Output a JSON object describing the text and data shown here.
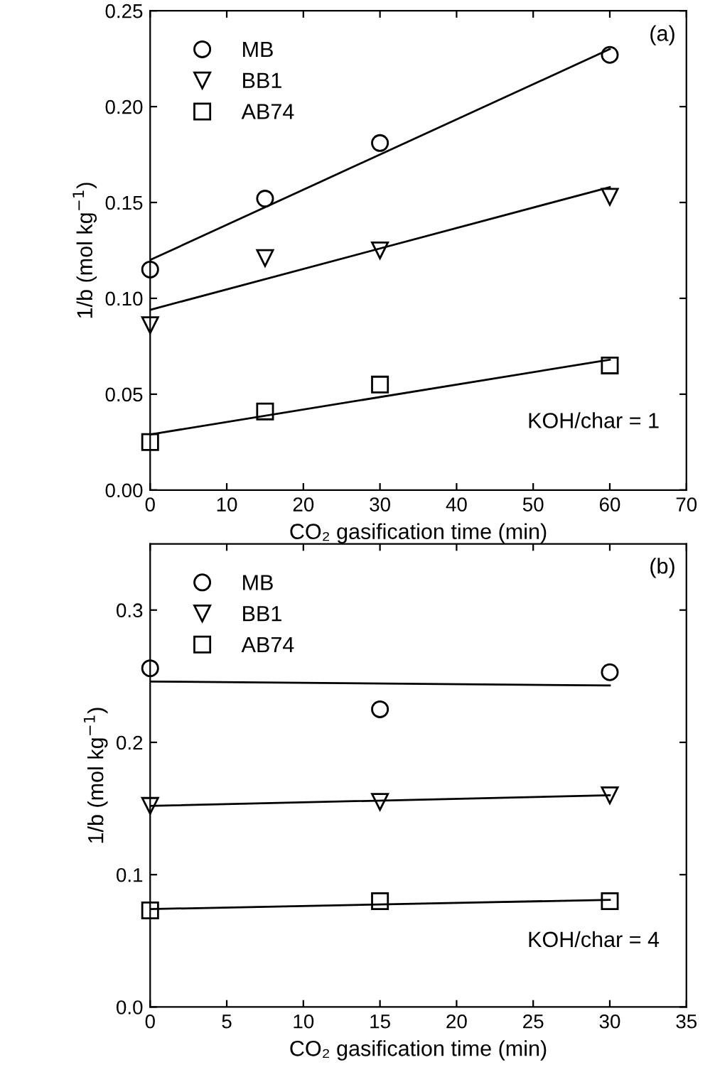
{
  "chart_data": [
    {
      "type": "scatter",
      "xlabel": "CO₂ gasification time (min)",
      "ylabel": "1/b (mol kg$^{−1}$)",
      "xlim": [
        0,
        70
      ],
      "xticks": [
        0,
        10,
        20,
        30,
        40,
        50,
        60,
        70
      ],
      "ylim": [
        0,
        0.25
      ],
      "yticks": [
        {
          "value": 0,
          "label": "0.00"
        },
        0.05,
        {
          "value": 0.1,
          "label": "0.10"
        },
        0.15,
        {
          "value": 0.2,
          "label": "0.20"
        },
        0.25
      ],
      "grid": false,
      "legend": "top left",
      "annotations": [
        "(a)",
        "KOH/char = 1"
      ],
      "series": [
        {
          "name": "MB",
          "marker": "circle",
          "color": "#000000",
          "x": [
            0,
            15,
            30,
            60
          ],
          "values": [
            0.115,
            0.152,
            0.181,
            0.227
          ]
        },
        {
          "name": "BB1",
          "marker": "triangle",
          "color": "#000000",
          "x": [
            0,
            15,
            30,
            60
          ],
          "values": [
            0.086,
            0.121,
            0.125,
            0.153
          ]
        },
        {
          "name": "AB74",
          "marker": "square",
          "color": "#000000",
          "x": [
            0,
            15,
            30,
            60
          ],
          "values": [
            0.025,
            0.041,
            0.055,
            0.065
          ]
        },
        {
          "type": "line",
          "color": "#000000",
          "x": [
            0,
            60
          ],
          "values": [
            0.12,
            0.23
          ]
        },
        {
          "type": "line",
          "color": "#000000",
          "x": [
            0,
            60
          ],
          "values": [
            0.094,
            0.158
          ]
        },
        {
          "type": "line",
          "color": "#000000",
          "x": [
            0,
            60
          ],
          "values": [
            0.029,
            0.068
          ]
        }
      ]
    },
    {
      "type": "scatter",
      "xlabel": "CO₂ gasification time (min)",
      "ylabel": "1/b (mol kg$^{−1}$)",
      "xlim": [
        0,
        35
      ],
      "xticks": [
        0,
        5,
        10,
        15,
        20,
        25,
        30,
        35
      ],
      "ylim": [
        0,
        0.35
      ],
      "yticks": [
        {
          "value": 0,
          "label": "0.0"
        },
        0.1,
        0.2,
        0.3
      ],
      "grid": false,
      "legend": "top left",
      "annotations": [
        "(b)",
        "KOH/char = 4"
      ],
      "series": [
        {
          "name": "MB",
          "marker": "circle",
          "color": "#000000",
          "x": [
            0,
            15,
            30
          ],
          "values": [
            0.256,
            0.225,
            0.253
          ]
        },
        {
          "name": "BB1",
          "marker": "triangle",
          "color": "#000000",
          "x": [
            0,
            15,
            30
          ],
          "values": [
            0.152,
            0.155,
            0.16
          ]
        },
        {
          "name": "AB74",
          "marker": "square",
          "color": "#000000",
          "x": [
            0,
            15,
            30
          ],
          "values": [
            0.073,
            0.08,
            0.08
          ]
        },
        {
          "type": "line",
          "color": "#000000",
          "x": [
            0,
            30
          ],
          "values": [
            0.246,
            0.243
          ]
        },
        {
          "type": "line",
          "color": "#000000",
          "x": [
            0,
            30
          ],
          "values": [
            0.152,
            0.16
          ]
        },
        {
          "type": "line",
          "color": "#000000",
          "x": [
            0,
            30
          ],
          "values": [
            0.074,
            0.081
          ]
        }
      ]
    }
  ]
}
